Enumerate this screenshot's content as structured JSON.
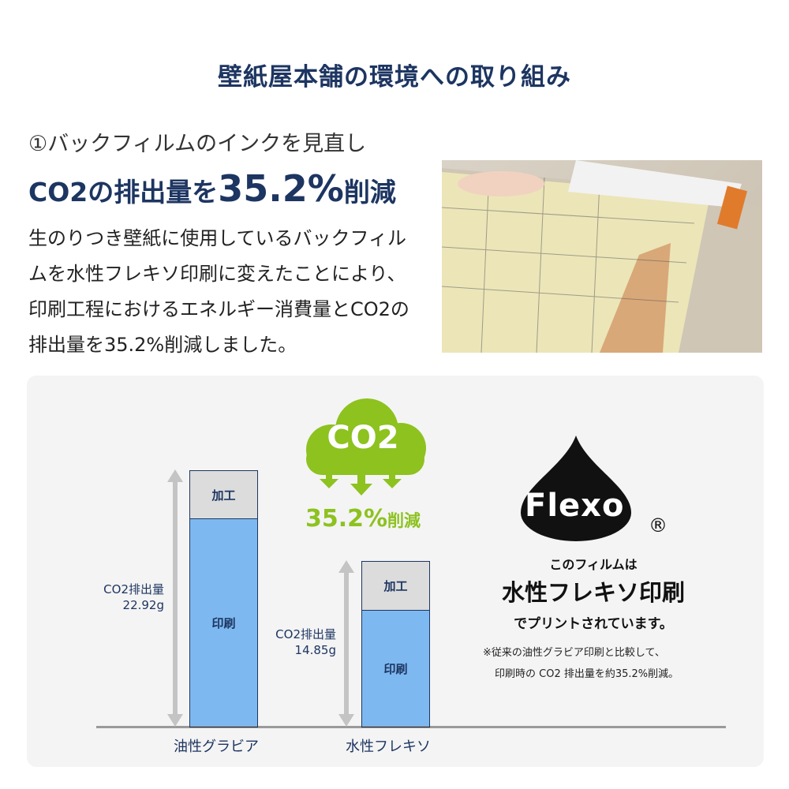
{
  "title": "壁紙屋本舗の環境への取り組み",
  "section": {
    "subtitle": "①バックフィルムのインクを見直し",
    "headline_prefix": "CO2の排出量を",
    "headline_value": "35.2%",
    "headline_suffix": "削減",
    "body": "生のりつき壁紙に使用しているバックフィルムを水性フレキソ印刷に変えたことにより、印刷工程におけるエネルギー消費量とCO2の排出量を35.2%削減しました。"
  },
  "chart": {
    "cloud_text": "CO2",
    "reduction": "35.2%",
    "reduction_suffix": "削減",
    "bars": [
      {
        "category": "油性グラビア",
        "total_label": "CO2排出量",
        "total_value": "22.92g",
        "top": "加工",
        "bottom": "印刷"
      },
      {
        "category": "水性フレキソ",
        "total_label": "CO2排出量",
        "total_value": "14.85g",
        "top": "加工",
        "bottom": "印刷"
      }
    ],
    "colors": {
      "print": "#7db9f0",
      "process": "#dcdcdc",
      "green": "#8dc21f",
      "navy": "#1d3561"
    }
  },
  "flexo": {
    "logo": "Flexo",
    "registered": "®",
    "line1": "このフィルムは",
    "line2": "水性フレキソ印刷",
    "line3": "でプリントされています。",
    "note1": "※従来の油性グラビア印刷と比較して、",
    "note2": "印刷時の CO2 排出量を約35.2%削減。"
  }
}
